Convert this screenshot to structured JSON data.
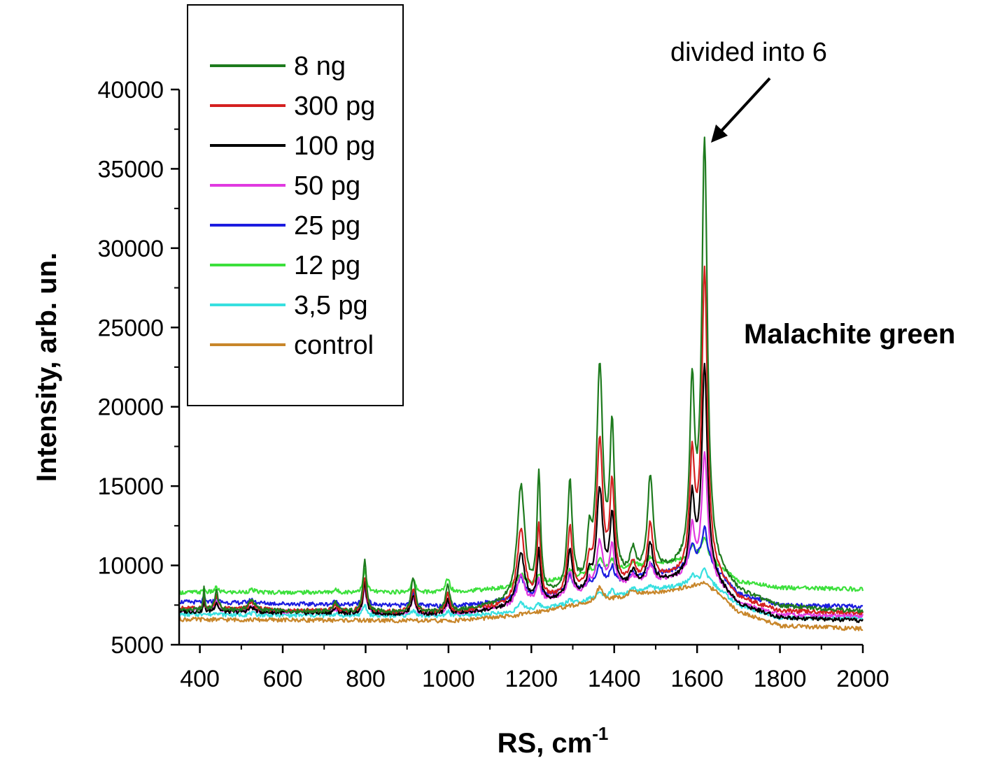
{
  "chart_data": {
    "type": "line",
    "title": "Malachite green",
    "xlabel": "RS, cm",
    "xlabel_sup": "-1",
    "ylabel": "Intensity, arb. un.",
    "xlim": [
      350,
      2000
    ],
    "ylim": [
      5000,
      40000
    ],
    "x_ticks": [
      400,
      600,
      800,
      1000,
      1200,
      1400,
      1600,
      1800,
      2000
    ],
    "y_ticks": [
      5000,
      10000,
      15000,
      20000,
      25000,
      30000,
      35000,
      40000
    ],
    "x_tick_labels": [
      "400",
      "600",
      "800",
      "1000",
      "1200",
      "1400",
      "1600",
      "1800",
      "2000"
    ],
    "y_tick_labels": [
      "5000",
      "10000",
      "15000",
      "20000",
      "25000",
      "30000",
      "35000",
      "40000"
    ],
    "grid": false,
    "legend_position": "top-left",
    "annotation": {
      "text": "divided into 6",
      "points_to_x": 1616,
      "points_to_y": 36500
    },
    "peaks": [
      410,
      440,
      525,
      727,
      798,
      915,
      998,
      1175,
      1218,
      1293,
      1340,
      1365,
      1395,
      1445,
      1487,
      1588,
      1618
    ],
    "series": [
      {
        "name": "8 ng",
        "color": "#1e7b1e",
        "baseline": [
          [
            350,
            7200
          ],
          [
            1000,
            7000
          ],
          [
            1150,
            7600
          ],
          [
            1400,
            8700
          ],
          [
            1550,
            9700
          ],
          [
            1620,
            10200
          ],
          [
            1700,
            8300
          ],
          [
            1800,
            7400
          ],
          [
            2000,
            7100
          ]
        ],
        "peak_heights": [
          1500,
          1200,
          700,
          600,
          3200,
          2200,
          1800,
          7200,
          7600,
          6800,
          2800,
          13500,
          9400,
          1600,
          6200,
          10700,
          26300
        ]
      },
      {
        "name": "300 pg",
        "color": "#d42020",
        "baseline": [
          [
            350,
            7300
          ],
          [
            1000,
            7000
          ],
          [
            1150,
            7500
          ],
          [
            1400,
            8500
          ],
          [
            1550,
            9300
          ],
          [
            1620,
            9800
          ],
          [
            1700,
            7900
          ],
          [
            1800,
            7100
          ],
          [
            2000,
            7000
          ]
        ],
        "peak_heights": [
          900,
          800,
          400,
          400,
          2200,
          1500,
          1200,
          4600,
          4700,
          4200,
          1500,
          9300,
          6300,
          1200,
          3600,
          7000,
          18600
        ]
      },
      {
        "name": "100 pg",
        "color": "#000000",
        "baseline": [
          [
            350,
            7100
          ],
          [
            1000,
            6900
          ],
          [
            1150,
            7300
          ],
          [
            1400,
            8400
          ],
          [
            1550,
            9100
          ],
          [
            1620,
            9500
          ],
          [
            1700,
            7500
          ],
          [
            1800,
            6700
          ],
          [
            2000,
            6500
          ]
        ],
        "peak_heights": [
          700,
          600,
          300,
          300,
          1900,
          1200,
          900,
          3300,
          3200,
          3000,
          1100,
          6400,
          4500,
          900,
          2500,
          4800,
          12900
        ]
      },
      {
        "name": "50 pg",
        "color": "#e03ae0",
        "baseline": [
          [
            350,
            7200
          ],
          [
            1000,
            6900
          ],
          [
            1150,
            7400
          ],
          [
            1400,
            8600
          ],
          [
            1550,
            9200
          ],
          [
            1620,
            9600
          ],
          [
            1700,
            7600
          ],
          [
            1800,
            6900
          ],
          [
            2000,
            6800
          ]
        ],
        "peak_heights": [
          500,
          500,
          250,
          250,
          1600,
          1000,
          700,
          1800,
          1400,
          1500,
          600,
          3000,
          2600,
          500,
          1100,
          2900,
          7400
        ]
      },
      {
        "name": "25 pg",
        "color": "#1c1ce0",
        "baseline": [
          [
            350,
            7700
          ],
          [
            1000,
            7400
          ],
          [
            1150,
            7800
          ],
          [
            1400,
            8800
          ],
          [
            1550,
            9700
          ],
          [
            1620,
            10400
          ],
          [
            1700,
            8200
          ],
          [
            1800,
            7500
          ],
          [
            2000,
            7400
          ]
        ],
        "peak_heights": [
          400,
          300,
          200,
          200,
          1300,
          800,
          500,
          1300,
          900,
          1000,
          400,
          1300,
          1100,
          400,
          700,
          1300,
          1900
        ]
      },
      {
        "name": "12 pg",
        "color": "#3ce03c",
        "baseline": [
          [
            350,
            8300
          ],
          [
            1000,
            8300
          ],
          [
            1150,
            8600
          ],
          [
            1400,
            9700
          ],
          [
            1550,
            10300
          ],
          [
            1620,
            10600
          ],
          [
            1700,
            9000
          ],
          [
            1800,
            8600
          ],
          [
            2000,
            8500
          ]
        ],
        "peak_heights": [
          300,
          300,
          150,
          150,
          1400,
          800,
          900,
          700,
          500,
          500,
          300,
          800,
          700,
          300,
          500,
          700,
          1100
        ]
      },
      {
        "name": "3,5 pg",
        "color": "#38e0e0",
        "baseline": [
          [
            350,
            6900
          ],
          [
            1000,
            6800
          ],
          [
            1150,
            7000
          ],
          [
            1400,
            8000
          ],
          [
            1550,
            8700
          ],
          [
            1620,
            9200
          ],
          [
            1700,
            7500
          ],
          [
            1800,
            6700
          ],
          [
            2000,
            6700
          ]
        ],
        "peak_heights": [
          200,
          200,
          100,
          100,
          700,
          400,
          300,
          500,
          300,
          300,
          200,
          400,
          400,
          300,
          300,
          400,
          500
        ]
      },
      {
        "name": "control",
        "color": "#c8862a",
        "baseline": [
          [
            350,
            6600
          ],
          [
            1000,
            6500
          ],
          [
            1150,
            6800
          ],
          [
            1400,
            7900
          ],
          [
            1550,
            8500
          ],
          [
            1620,
            8900
          ],
          [
            1700,
            7100
          ],
          [
            1800,
            6200
          ],
          [
            2000,
            6000
          ]
        ],
        "peak_heights": [
          0,
          0,
          0,
          0,
          0,
          0,
          0,
          0,
          0,
          0,
          0,
          900,
          0,
          400,
          0,
          0,
          0
        ]
      }
    ]
  }
}
